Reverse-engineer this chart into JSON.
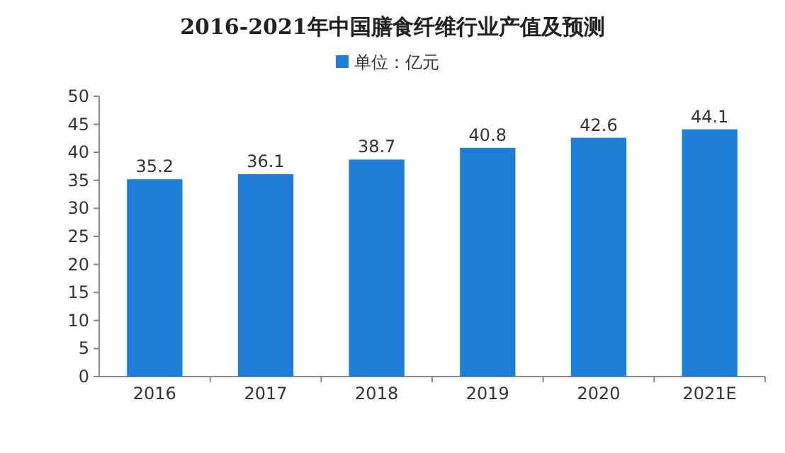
{
  "chart_data": {
    "type": "bar",
    "title": "2016-2021年中国膳食纤维行业产值及预测",
    "categories": [
      "2016",
      "2017",
      "2018",
      "2019",
      "2020",
      "2021E"
    ],
    "series": [
      {
        "name": "单位：亿元",
        "color": "#1f7fd8",
        "values": [
          35.2,
          36.1,
          38.7,
          40.8,
          42.6,
          44.1
        ]
      }
    ],
    "ylim": [
      0,
      50
    ],
    "yticks": [
      0,
      5,
      10,
      15,
      20,
      25,
      30,
      35,
      40,
      45,
      50
    ],
    "data_labels": true,
    "legend": "top"
  }
}
